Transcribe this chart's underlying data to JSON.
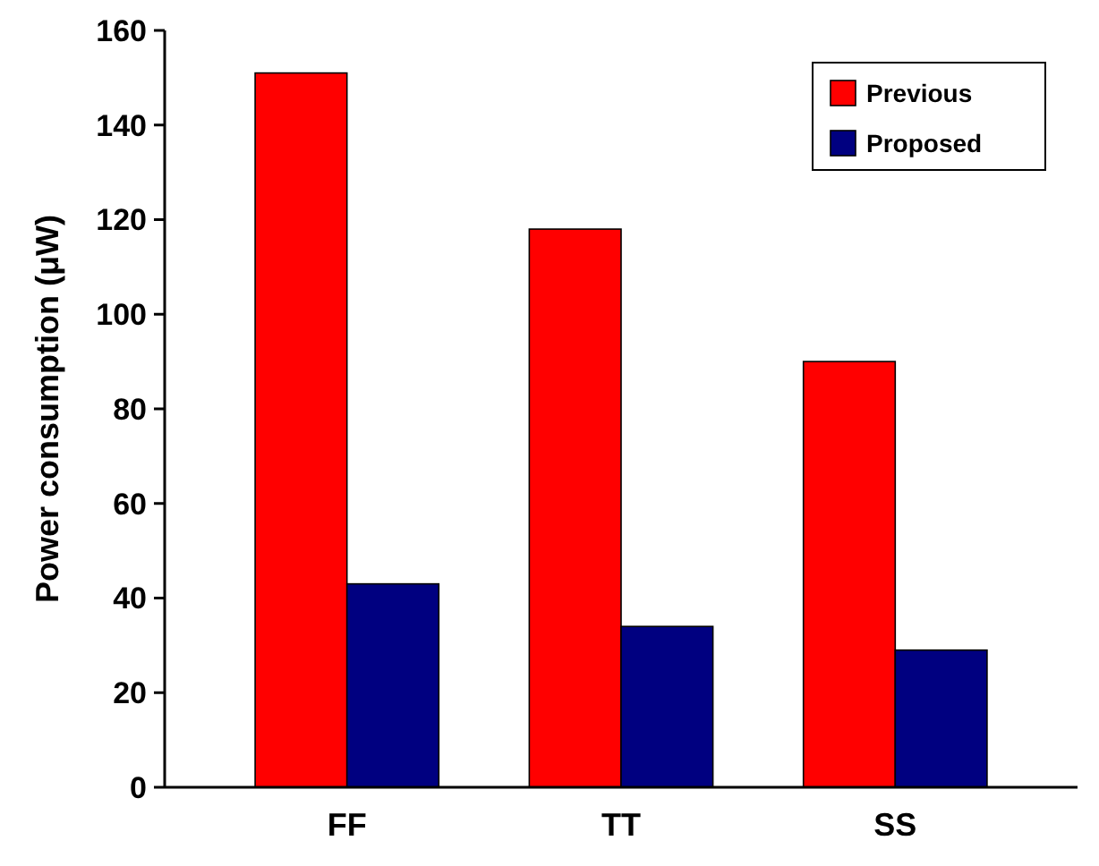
{
  "chart_data": {
    "type": "bar",
    "ylabel": "Power consumption (μW)",
    "categories": [
      "FF",
      "TT",
      "SS"
    ],
    "series": [
      {
        "name": "Previous",
        "color": "#ff0000",
        "values": [
          151,
          118,
          90
        ]
      },
      {
        "name": "Proposed",
        "color": "#000080",
        "values": [
          43,
          34,
          29
        ]
      }
    ],
    "ylim": [
      0,
      160
    ],
    "yticks": [
      0,
      20,
      40,
      60,
      80,
      100,
      120,
      140,
      160
    ],
    "legend": "top right",
    "grid": false
  }
}
